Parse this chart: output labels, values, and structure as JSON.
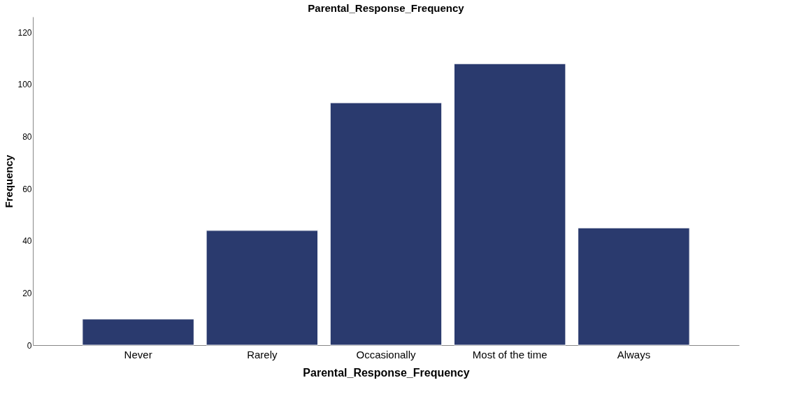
{
  "chart_data": {
    "type": "bar",
    "title": "Parental_Response_Frequency",
    "xlabel": "Parental_Response_Frequency",
    "ylabel": "Frequency",
    "categories": [
      "Never",
      "Rarely",
      "Occasionally",
      "Most of the time",
      "Always"
    ],
    "values": [
      10,
      44,
      93,
      108,
      45
    ],
    "color": "#2a3a6e",
    "ylim": [
      0,
      126
    ],
    "yticks": [
      0,
      20,
      40,
      60,
      80,
      100,
      120
    ],
    "grid": false
  }
}
